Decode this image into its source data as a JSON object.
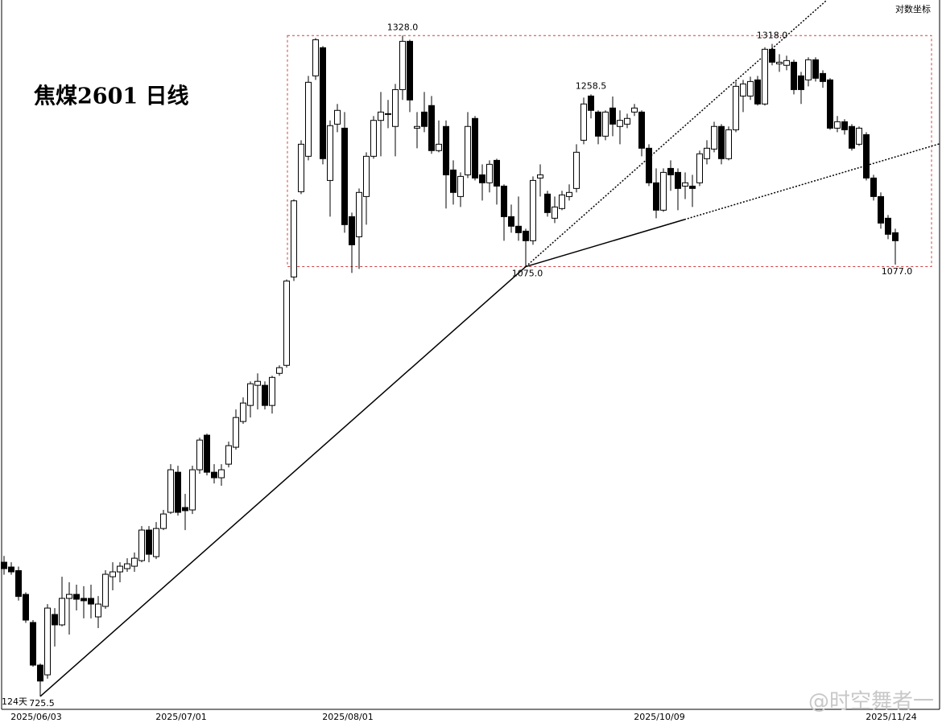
{
  "chart_data": {
    "type": "candlestick",
    "title": "焦煤2601 日线",
    "scale_label": "对数坐标",
    "log": true,
    "watermark": "@时空舞者一",
    "day_count_label": "124天",
    "up_color": "#ffffff",
    "down_color": "#000000",
    "ylim": [
      717,
      1372
    ],
    "categories": [
      null,
      null,
      null,
      null,
      null,
      "2025/06/03",
      null,
      null,
      null,
      null,
      null,
      null,
      null,
      null,
      null,
      null,
      null,
      null,
      null,
      null,
      null,
      null,
      null,
      null,
      null,
      "2025/07/01",
      null,
      null,
      null,
      null,
      null,
      null,
      null,
      null,
      null,
      null,
      null,
      null,
      null,
      null,
      null,
      null,
      null,
      null,
      null,
      null,
      null,
      null,
      "2025/08/01",
      null,
      null,
      null,
      null,
      null,
      null,
      null,
      null,
      null,
      null,
      null,
      null,
      null,
      null,
      null,
      null,
      null,
      null,
      null,
      null,
      null,
      null,
      null,
      null,
      null,
      null,
      null,
      null,
      null,
      null,
      null,
      null,
      null,
      null,
      null,
      null,
      null,
      null,
      null,
      null,
      null,
      null,
      "2025/10/09",
      null,
      null,
      null,
      null,
      null,
      null,
      null,
      null,
      null,
      null,
      null,
      null,
      null,
      null,
      null,
      null,
      null,
      null,
      null,
      null,
      null,
      null,
      null,
      null,
      null,
      null,
      null,
      null,
      null,
      null,
      null,
      "2025/11/24"
    ],
    "open": [
      820.3,
      816.7,
      814,
      796.5,
      776.3,
      746.6,
      740,
      782,
      774.6,
      793.6,
      796.5,
      793.6,
      793.6,
      780.3,
      787.8,
      809.5,
      813.1,
      815.5,
      817.3,
      821.5,
      844.8,
      824.5,
      846,
      858.6,
      890.7,
      862.4,
      860.5,
      892.7,
      921.4,
      890.7,
      886.2,
      897.3,
      911.3,
      933,
      946.8,
      964.4,
      964.4,
      946.8,
      975,
      982.2,
      1064.9,
      1151.3,
      1189.2,
      1280,
      1313.4,
      1163.2,
      1224.7,
      1220.2,
      1125.3,
      1104.8,
      1146.2,
      1189.2,
      1228.9,
      1235.6,
      1222.1,
      1264,
      1321.1,
      1220.2,
      1238.3,
      1245.7,
      1195.4,
      1222.1,
      1174.4,
      1146.2,
      1169.2,
      1231.1,
      1169.2,
      1160.7,
      1184.8,
      1157.2,
      1125.3,
      1115.5,
      1110.5,
      1100.8,
      1165.8,
      1148.8,
      1123.7,
      1133.7,
      1146.2,
      1154.7,
      1206.8,
      1256.6,
      1238.3,
      1211.3,
      1242.9,
      1222.1,
      1224.7,
      1238.3,
      1238.3,
      1198,
      1160.7,
      1132,
      1176.1,
      1171.8,
      1157.2,
      1157.2,
      1160.7,
      1186.6,
      1197.1,
      1222.1,
      1186.6,
      1218.4,
      1256.6,
      1256.6,
      1275.3,
      1247.5,
      1311.5,
      1294.2,
      1292.4,
      1296.1,
      1280,
      1275.3,
      1299,
      1282.8,
      1275.3,
      1220.2,
      1227.4,
      1222.1,
      1202.4,
      1213,
      1165.8,
      1146.2,
      1123.7,
      1108.9
    ],
    "high": [
      825,
      820.3,
      817,
      798,
      778,
      747.7,
      789.5,
      786.6,
      809.5,
      805.4,
      803.6,
      802.5,
      803.6,
      795.3,
      814.3,
      820.3,
      820.3,
      823.3,
      827.6,
      847.9,
      847.9,
      851,
      860.5,
      897.3,
      896,
      873.2,
      896,
      919.3,
      922.7,
      897.3,
      897.3,
      916,
      943.3,
      953.8,
      967.9,
      975,
      967.9,
      972.9,
      982.2,
      1062.5,
      1143.4,
      1206.8,
      1280,
      1325,
      1315.3,
      1228.9,
      1247.5,
      1238.3,
      1129.5,
      1154.7,
      1193.6,
      1233.8,
      1261.3,
      1252.1,
      1270.6,
      1328,
      1323,
      1238.3,
      1261.3,
      1256.6,
      1228.9,
      1228.9,
      1184.8,
      1171.8,
      1238.3,
      1233.8,
      1180.5,
      1184.8,
      1186.6,
      1159,
      1137.8,
      1146.2,
      1113,
      1167.5,
      1180.5,
      1152.2,
      1146.2,
      1152.2,
      1159,
      1202.4,
      1254.8,
      1258.5,
      1240.2,
      1240.2,
      1256,
      1240.2,
      1236.5,
      1247.5,
      1240.2,
      1202.4,
      1176.1,
      1176.1,
      1184.8,
      1176.1,
      1171.8,
      1169.2,
      1195.4,
      1206.8,
      1227.4,
      1224.7,
      1222.1,
      1273.4,
      1275.3,
      1279,
      1280,
      1314,
      1318,
      1305.7,
      1303.8,
      1299,
      1284.7,
      1301.9,
      1301.9,
      1286.6,
      1277.2,
      1233.8,
      1230.2,
      1224.7,
      1222.1,
      1215.7,
      1169.2,
      1150.5,
      1127,
      1113
    ],
    "low": [
      811,
      811,
      792,
      776,
      745.5,
      725.5,
      737.4,
      759.4,
      773.5,
      767.8,
      784.9,
      779.2,
      779.2,
      772.3,
      786.1,
      799.5,
      805.4,
      813.1,
      813.1,
      820.3,
      820.3,
      822.7,
      844.8,
      857.3,
      856,
      844.8,
      857.3,
      889.4,
      888.1,
      881.6,
      879.7,
      894.7,
      909.3,
      931,
      936.4,
      943.3,
      943.3,
      939.8,
      972.9,
      980.1,
      1061,
      1148.8,
      1184.8,
      1275.3,
      1180.5,
      1125.3,
      1215.7,
      1108.9,
      1068.8,
      1072.8,
      1117.1,
      1186.6,
      1189.2,
      1220.2,
      1189.2,
      1252.1,
      1238.3,
      1198,
      1215.7,
      1191.9,
      1193.6,
      1133.7,
      1137.8,
      1135.3,
      1165.8,
      1163.2,
      1142,
      1150.5,
      1137.8,
      1100.8,
      1108.9,
      1100.8,
      1075,
      1096.7,
      1146.2,
      1125.3,
      1118.7,
      1132,
      1142,
      1150.5,
      1202.4,
      1231.1,
      1202.4,
      1206.8,
      1211.3,
      1202.4,
      1220.2,
      1233.8,
      1189.2,
      1157.2,
      1123.7,
      1130.3,
      1152.2,
      1132,
      1143.6,
      1135.3,
      1157.2,
      1180.5,
      1193.6,
      1180.5,
      1184.8,
      1215.7,
      1238.3,
      1252.1,
      1245.7,
      1245.7,
      1292.4,
      1284.7,
      1286.6,
      1258.5,
      1247.5,
      1267.8,
      1273.4,
      1266.1,
      1218.4,
      1215.7,
      1213,
      1195.4,
      1200.6,
      1163.2,
      1142,
      1113,
      1102.4,
      1077
    ],
    "close": [
      815.5,
      813.1,
      795,
      778,
      746.6,
      735.8,
      786.6,
      774.6,
      793.6,
      796.5,
      793,
      791.9,
      789.5,
      789.5,
      811.3,
      813.1,
      817.3,
      819.1,
      823.3,
      844.8,
      826.3,
      846,
      857.3,
      892.7,
      858.6,
      859.9,
      892.7,
      917.3,
      890.7,
      886.2,
      892.7,
      912.6,
      936.4,
      948.9,
      965.8,
      967.9,
      946.8,
      971.4,
      980.1,
      1061,
      1141.7,
      1202.4,
      1272.5,
      1323,
      1186.6,
      1223,
      1240.2,
      1117.1,
      1096.7,
      1150.5,
      1189.2,
      1228.9,
      1238.3,
      1236.5,
      1264,
      1321.1,
      1252.1,
      1222.1,
      1222.1,
      1195.4,
      1202.4,
      1169.2,
      1150.5,
      1167.5,
      1222.1,
      1165.8,
      1160.7,
      1180.5,
      1157.2,
      1125.3,
      1115.5,
      1108.9,
      1100.8,
      1163.2,
      1169.2,
      1129.5,
      1135.3,
      1147.9,
      1150.5,
      1193.6,
      1247.5,
      1240.2,
      1211.3,
      1238.3,
      1224.7,
      1228.9,
      1231.1,
      1242.9,
      1198,
      1160.7,
      1132,
      1171.8,
      1169.2,
      1154.7,
      1160.7,
      1154.7,
      1191.9,
      1198,
      1222.1,
      1186.6,
      1218.4,
      1267.8,
      1270.6,
      1273.4,
      1247.5,
      1311.5,
      1296.1,
      1296.1,
      1298,
      1264,
      1264,
      1299,
      1277.2,
      1273.4,
      1220.2,
      1227.4,
      1218.4,
      1198,
      1220.2,
      1165.8,
      1146.2,
      1118.7,
      1107.3,
      1100.8
    ],
    "high_labels": {
      "55": "1328.0",
      "81": "1258.5",
      "106": "1318.0"
    },
    "low_labels": {
      "5": "725.5",
      "72": "1075.0",
      "123": "1077.0"
    }
  }
}
